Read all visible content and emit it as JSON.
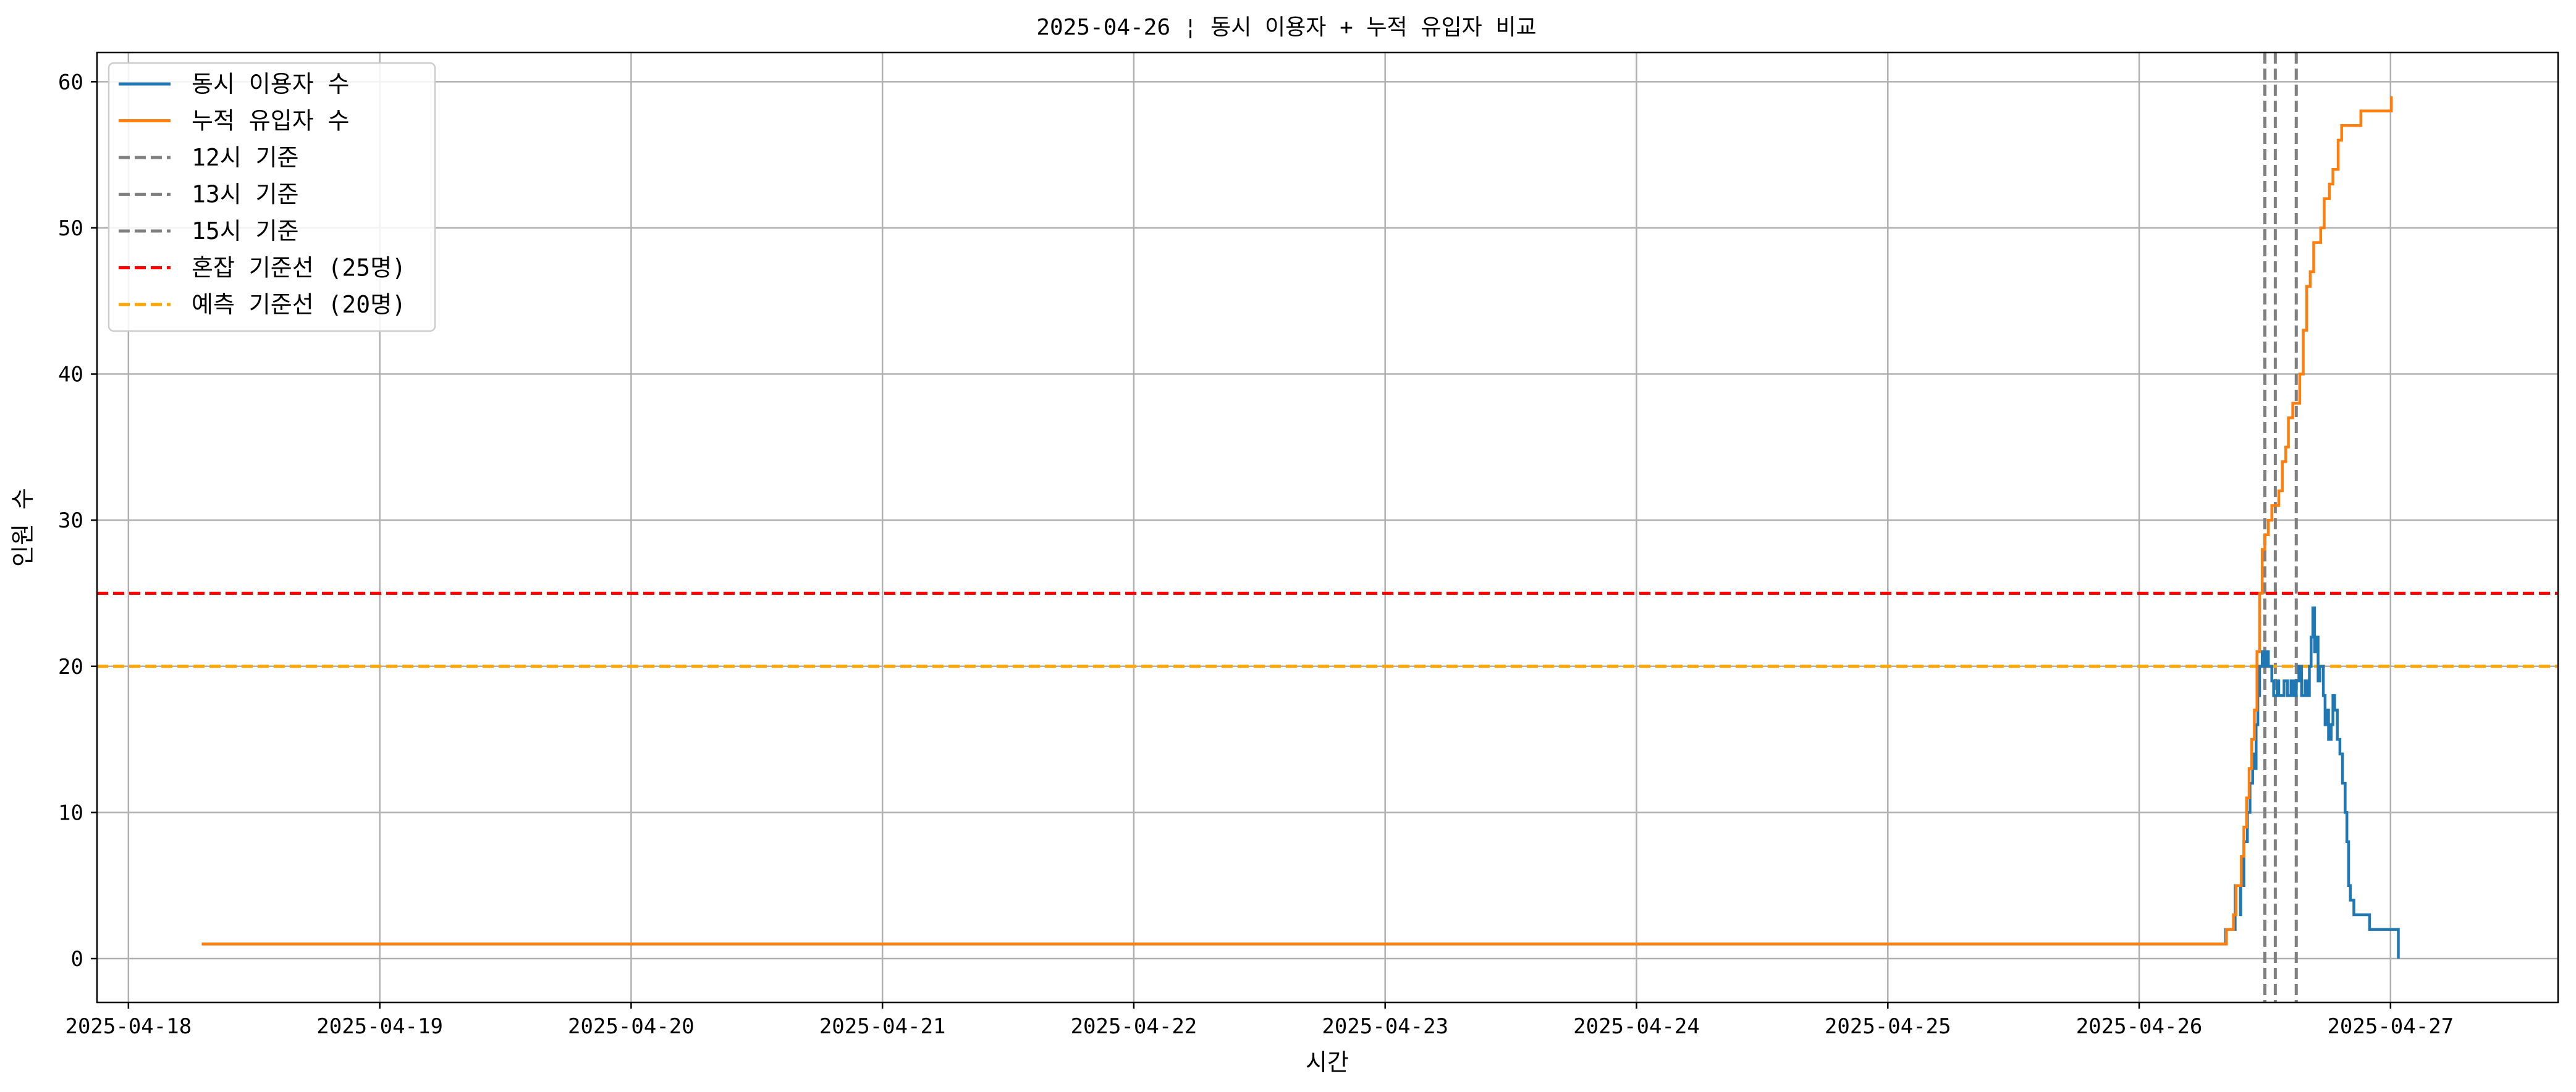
{
  "chart_data": {
    "type": "line",
    "title": "2025-04-26 ¦ 동시 이용자 + 누적 유입자 비교",
    "xlabel": "시간",
    "ylabel": "인원 수",
    "x_type": "datetime",
    "xlim": [
      "2025-04-17T21:00",
      "2025-04-27T16:00"
    ],
    "ylim": [
      -3,
      62
    ],
    "x_ticks": [
      "2025-04-18",
      "2025-04-19",
      "2025-04-20",
      "2025-04-21",
      "2025-04-22",
      "2025-04-23",
      "2025-04-24",
      "2025-04-25",
      "2025-04-26",
      "2025-04-27"
    ],
    "y_ticks": [
      0,
      10,
      20,
      30,
      40,
      50,
      60
    ],
    "grid": true,
    "legend_position": "top-left",
    "colors": {
      "concurrent": "#1f77b4",
      "cumulative": "#ff7f0e",
      "time_lines": "#7f7f7f",
      "congestion": "#ff0000",
      "prediction": "#ffa500",
      "grid": "#b0b0b0"
    },
    "series": [
      {
        "name": "동시 이용자 수",
        "color": "#1f77b4",
        "style": "step",
        "points": [
          [
            "2025-04-18T07:00",
            1
          ],
          [
            "2025-04-26T08:00",
            1
          ],
          [
            "2025-04-26T08:15",
            2
          ],
          [
            "2025-04-26T09:00",
            2
          ],
          [
            "2025-04-26T09:10",
            5
          ],
          [
            "2025-04-26T09:40",
            3
          ],
          [
            "2025-04-26T09:42",
            5
          ],
          [
            "2025-04-26T10:00",
            8
          ],
          [
            "2025-04-26T10:20",
            10
          ],
          [
            "2025-04-26T10:35",
            12
          ],
          [
            "2025-04-26T10:50",
            14
          ],
          [
            "2025-04-26T11:00",
            13
          ],
          [
            "2025-04-26T11:10",
            16
          ],
          [
            "2025-04-26T11:20",
            18
          ],
          [
            "2025-04-26T11:30",
            20
          ],
          [
            "2025-04-26T11:45",
            21
          ],
          [
            "2025-04-26T12:00",
            20
          ],
          [
            "2025-04-26T12:05",
            21
          ],
          [
            "2025-04-26T12:20",
            20
          ],
          [
            "2025-04-26T12:40",
            19
          ],
          [
            "2025-04-26T12:50",
            18
          ],
          [
            "2025-04-26T13:10",
            19
          ],
          [
            "2025-04-26T13:20",
            18
          ],
          [
            "2025-04-26T13:40",
            18
          ],
          [
            "2025-04-26T13:50",
            19
          ],
          [
            "2025-04-26T14:10",
            18
          ],
          [
            "2025-04-26T14:30",
            19
          ],
          [
            "2025-04-26T14:45",
            18
          ],
          [
            "2025-04-26T15:00",
            19
          ],
          [
            "2025-04-26T15:15",
            20
          ],
          [
            "2025-04-26T15:30",
            18
          ],
          [
            "2025-04-26T15:50",
            19
          ],
          [
            "2025-04-26T16:00",
            18
          ],
          [
            "2025-04-26T16:15",
            20
          ],
          [
            "2025-04-26T16:25",
            22
          ],
          [
            "2025-04-26T16:35",
            24
          ],
          [
            "2025-04-26T16:45",
            21
          ],
          [
            "2025-04-26T16:55",
            22
          ],
          [
            "2025-04-26T17:05",
            19
          ],
          [
            "2025-04-26T17:15",
            20
          ],
          [
            "2025-04-26T17:25",
            20
          ],
          [
            "2025-04-26T17:35",
            18
          ],
          [
            "2025-04-26T17:45",
            16
          ],
          [
            "2025-04-26T17:55",
            17
          ],
          [
            "2025-04-26T18:05",
            15
          ],
          [
            "2025-04-26T18:20",
            16
          ],
          [
            "2025-04-26T18:30",
            18
          ],
          [
            "2025-04-26T18:40",
            17
          ],
          [
            "2025-04-26T18:55",
            15
          ],
          [
            "2025-04-26T19:10",
            14
          ],
          [
            "2025-04-26T19:25",
            12
          ],
          [
            "2025-04-26T19:40",
            10
          ],
          [
            "2025-04-26T19:50",
            8
          ],
          [
            "2025-04-26T20:00",
            5
          ],
          [
            "2025-04-26T20:10",
            4
          ],
          [
            "2025-04-26T20:30",
            3
          ],
          [
            "2025-04-26T21:00",
            3
          ],
          [
            "2025-04-26T22:00",
            2
          ],
          [
            "2025-04-26T23:00",
            2
          ],
          [
            "2025-04-27T00:30",
            2
          ],
          [
            "2025-04-27T00:45",
            0
          ]
        ]
      },
      {
        "name": "누적 유입자 수",
        "color": "#ff7f0e",
        "style": "step",
        "points": [
          [
            "2025-04-18T07:00",
            1
          ],
          [
            "2025-04-26T08:00",
            1
          ],
          [
            "2025-04-26T08:20",
            2
          ],
          [
            "2025-04-26T09:00",
            3
          ],
          [
            "2025-04-26T09:15",
            5
          ],
          [
            "2025-04-26T09:45",
            7
          ],
          [
            "2025-04-26T10:00",
            9
          ],
          [
            "2025-04-26T10:15",
            11
          ],
          [
            "2025-04-26T10:30",
            13
          ],
          [
            "2025-04-26T10:45",
            15
          ],
          [
            "2025-04-26T11:00",
            17
          ],
          [
            "2025-04-26T11:15",
            21
          ],
          [
            "2025-04-26T11:30",
            25
          ],
          [
            "2025-04-26T11:45",
            28
          ],
          [
            "2025-04-26T12:00",
            29
          ],
          [
            "2025-04-26T12:20",
            30
          ],
          [
            "2025-04-26T12:40",
            31
          ],
          [
            "2025-04-26T13:20",
            32
          ],
          [
            "2025-04-26T13:40",
            34
          ],
          [
            "2025-04-26T14:00",
            35
          ],
          [
            "2025-04-26T14:15",
            37
          ],
          [
            "2025-04-26T14:40",
            38
          ],
          [
            "2025-04-26T15:20",
            40
          ],
          [
            "2025-04-26T15:40",
            43
          ],
          [
            "2025-04-26T16:00",
            46
          ],
          [
            "2025-04-26T16:20",
            47
          ],
          [
            "2025-04-26T16:40",
            49
          ],
          [
            "2025-04-26T17:20",
            50
          ],
          [
            "2025-04-26T17:40",
            52
          ],
          [
            "2025-04-26T18:10",
            53
          ],
          [
            "2025-04-26T18:30",
            54
          ],
          [
            "2025-04-26T19:00",
            56
          ],
          [
            "2025-04-26T19:20",
            57
          ],
          [
            "2025-04-26T21:00",
            57
          ],
          [
            "2025-04-26T21:10",
            58
          ],
          [
            "2025-04-27T00:00",
            58
          ],
          [
            "2025-04-27T00:05",
            59
          ],
          [
            "2025-04-27T00:05",
            59
          ]
        ]
      },
      {
        "name": "12시 기준",
        "color": "#7f7f7f",
        "style": "vline",
        "x": "2025-04-26T12:00"
      },
      {
        "name": "13시 기준",
        "color": "#7f7f7f",
        "style": "vline",
        "x": "2025-04-26T13:00"
      },
      {
        "name": "15시 기준",
        "color": "#7f7f7f",
        "style": "vline",
        "x": "2025-04-26T15:00"
      },
      {
        "name": "혼잡 기준선 (25명)",
        "color": "#ff0000",
        "style": "hline",
        "y": 25
      },
      {
        "name": "예측 기준선 (20명)",
        "color": "#ffa500",
        "style": "hline",
        "y": 20
      }
    ]
  }
}
